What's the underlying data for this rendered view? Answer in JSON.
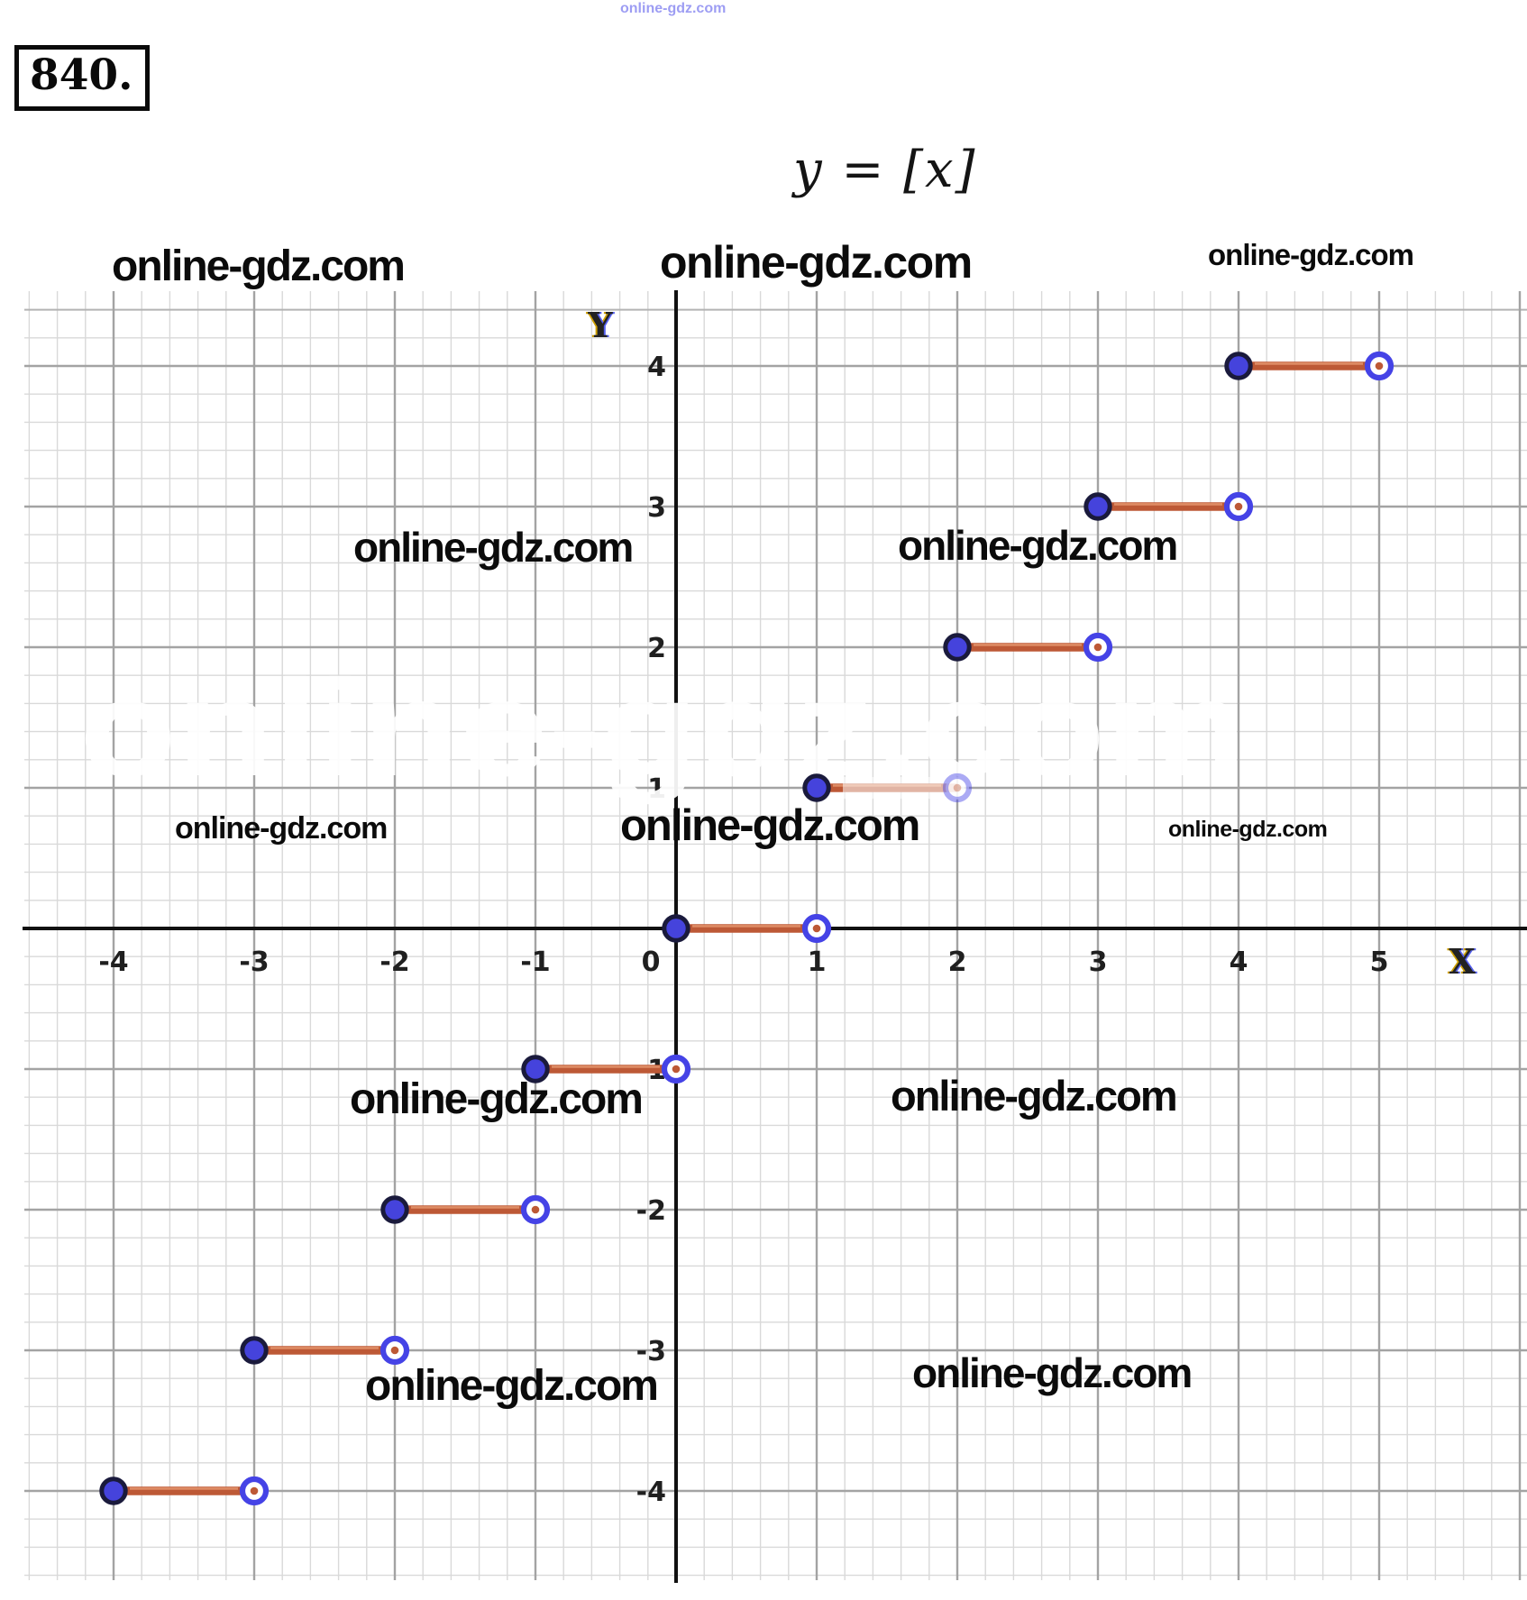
{
  "header": {
    "problem_number": "840.",
    "equation": "y = [x]"
  },
  "watermark": {
    "text": "online-gdz.com"
  },
  "chart_data": {
    "type": "step",
    "title": "y = [x]",
    "function": "floor(x)",
    "x_axis_label": "X",
    "y_axis_label": "Y",
    "x_ticks": [
      -4,
      -3,
      -2,
      -1,
      0,
      1,
      2,
      3,
      4,
      5
    ],
    "y_ticks": [
      4,
      3,
      2,
      1,
      0,
      -1,
      -2,
      -3,
      -4
    ],
    "xlim": [
      -4.6,
      6.05
    ],
    "ylim": [
      -4.65,
      4.55
    ],
    "grid": true,
    "minor_grid_per_unit": 5,
    "legend": "none",
    "steps": [
      {
        "y": -4,
        "x_from": -4,
        "x_to": -3,
        "left": "closed",
        "right": "open"
      },
      {
        "y": -3,
        "x_from": -3,
        "x_to": -2,
        "left": "closed",
        "right": "open"
      },
      {
        "y": -2,
        "x_from": -2,
        "x_to": -1,
        "left": "closed",
        "right": "open"
      },
      {
        "y": -1,
        "x_from": -1,
        "x_to": 0,
        "left": "closed",
        "right": "open"
      },
      {
        "y": 0,
        "x_from": 0,
        "x_to": 1,
        "left": "closed",
        "right": "open"
      },
      {
        "y": 1,
        "x_from": 1,
        "x_to": 2,
        "left": "closed",
        "right": "open",
        "faded": true
      },
      {
        "y": 2,
        "x_from": 2,
        "x_to": 3,
        "left": "closed",
        "right": "open"
      },
      {
        "y": 3,
        "x_from": 3,
        "x_to": 4,
        "left": "closed",
        "right": "open"
      },
      {
        "y": 4,
        "x_from": 4,
        "x_to": 5,
        "left": "closed",
        "right": "open"
      }
    ],
    "colors": {
      "background": "#ffffff",
      "grid_minor": "#d9d9d9",
      "grid_minor_dark": "#b3b3b3",
      "grid_major": "#a3a3a3",
      "axis": "#111111",
      "tick_label": "#1f1f1f",
      "point_fill": "#4543dc",
      "point_stroke": "#1a1a3c",
      "ring": "#4543e6",
      "segment": "#bd5936",
      "segment_highlight": "#e2926b",
      "watermark": "#0b0b0b",
      "watermark_light": "#8d8df2",
      "fringe_warm": "#cfa000",
      "fringe_cool": "#5560ee"
    }
  }
}
